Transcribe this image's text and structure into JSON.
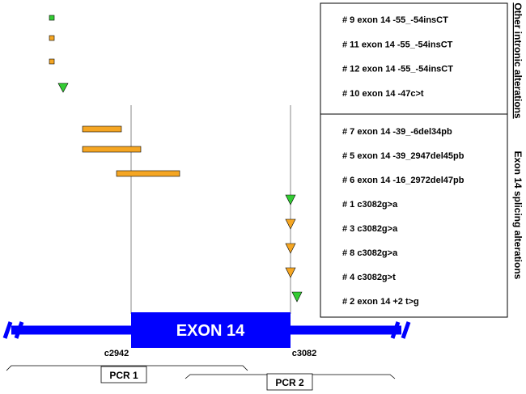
{
  "colors": {
    "gene": "#0000ff",
    "green_marker": "#33cc33",
    "orange_marker": "#f5a623",
    "side_label_red": "#cc0000",
    "line_gray": "#888888"
  },
  "intronic_alterations": [
    "# 9 exon 14 -55_-54insCT",
    "# 11 exon 14 -55_-54insCT",
    "# 12 exon 14 -55_-54insCT",
    "# 10 exon 14 -47c>t"
  ],
  "splicing_alterations": [
    "# 7 exon 14 -39_-6del34pb",
    "# 5 exon 14 -39_2947del45pb",
    "# 6 exon 14 -16_2972del47pb",
    "# 1 c3082g>a",
    "# 3 c3082g>a",
    "# 8 c3082g>a",
    "# 4 c3082g>t",
    "# 2 exon 14 +2 t>g"
  ],
  "side_labels": {
    "intronic": "Other intronic alterations",
    "splicing": "Exon 14 splicing alterations"
  },
  "exon_label": "EXON 14",
  "coords": {
    "start": "c2942",
    "end": "c3082"
  },
  "pcr": {
    "pcr1": "PCR 1",
    "pcr2": "PCR 2"
  }
}
